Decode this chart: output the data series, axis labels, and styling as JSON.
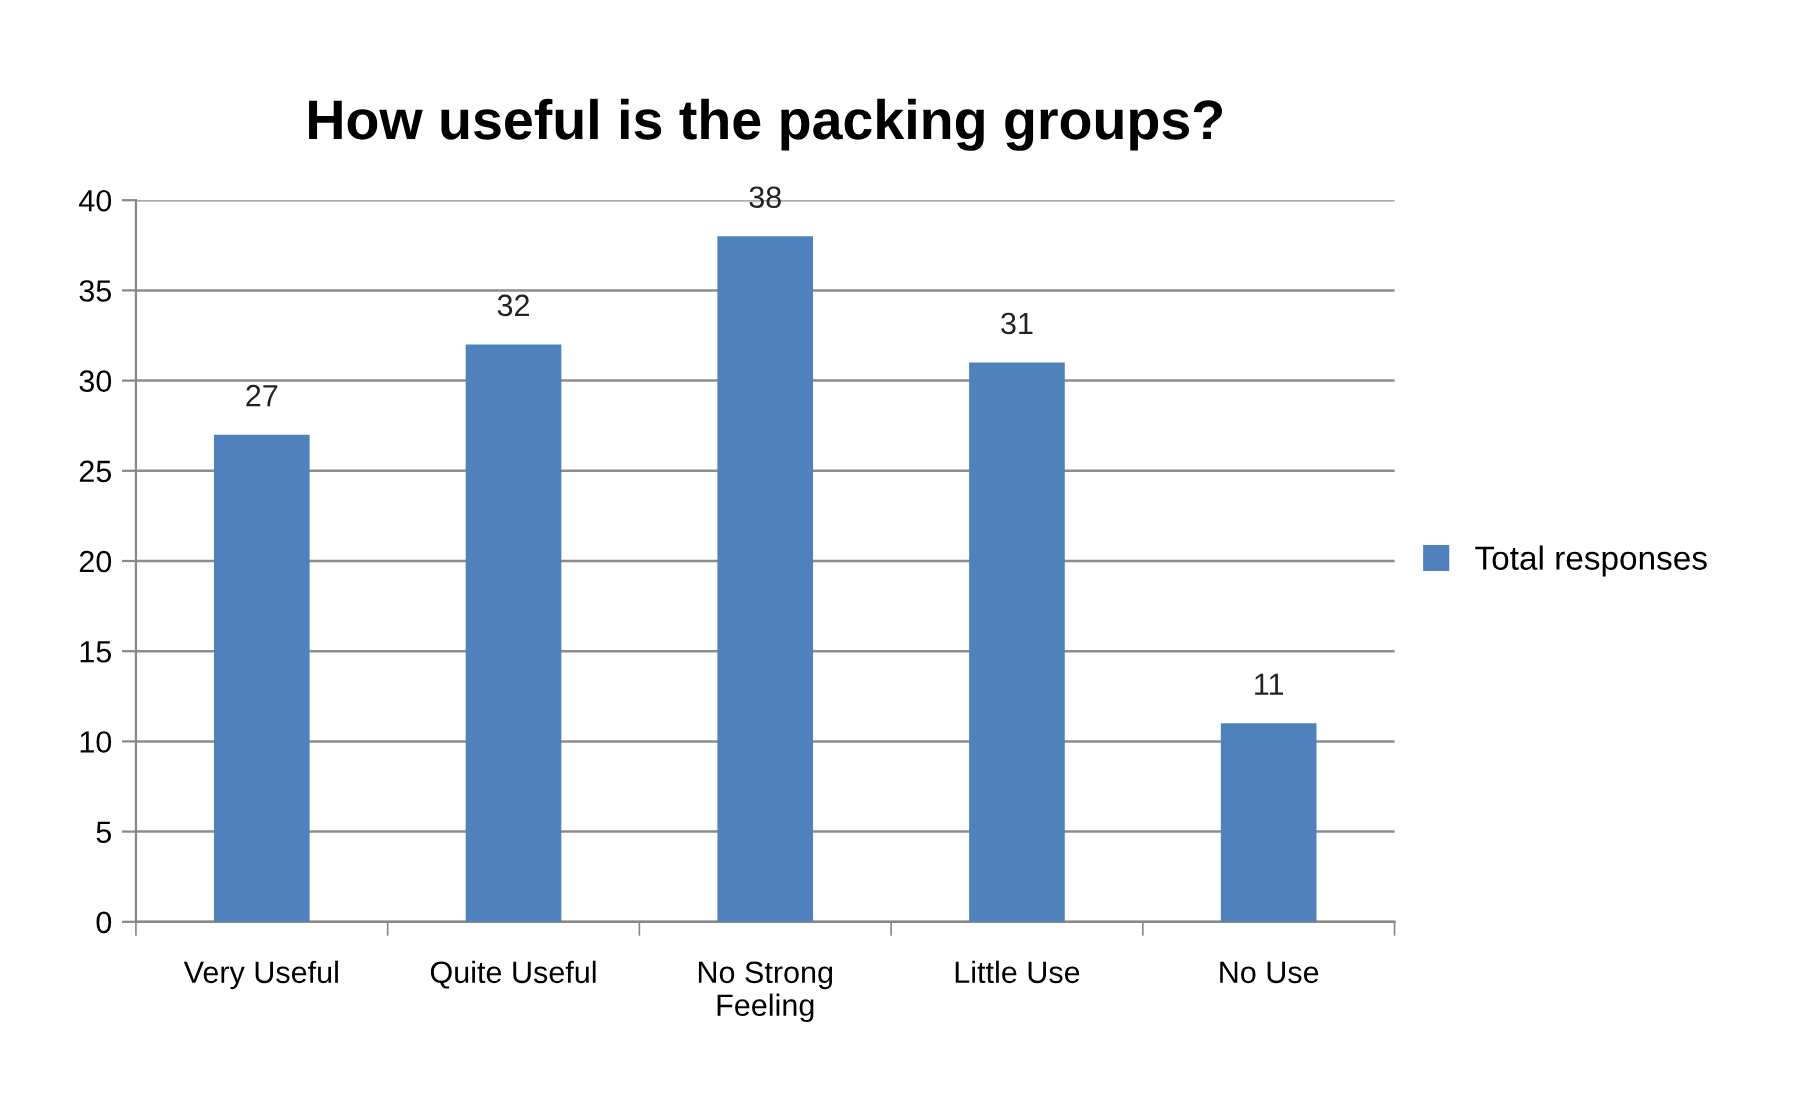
{
  "chart_data": {
    "type": "bar",
    "title": "How useful is the packing groups?",
    "categories": [
      "Very Useful",
      "Quite Useful",
      "No Strong\nFeeling",
      "Little Use",
      "No Use"
    ],
    "series": [
      {
        "name": "Total responses",
        "color": "#4f81bd",
        "values": [
          27,
          32,
          38,
          31,
          11
        ]
      }
    ],
    "ylim": [
      0,
      40
    ],
    "yticks": [
      0,
      5,
      10,
      15,
      20,
      25,
      30,
      35,
      40
    ],
    "grid": "y",
    "legend": "right",
    "data_labels": true
  }
}
